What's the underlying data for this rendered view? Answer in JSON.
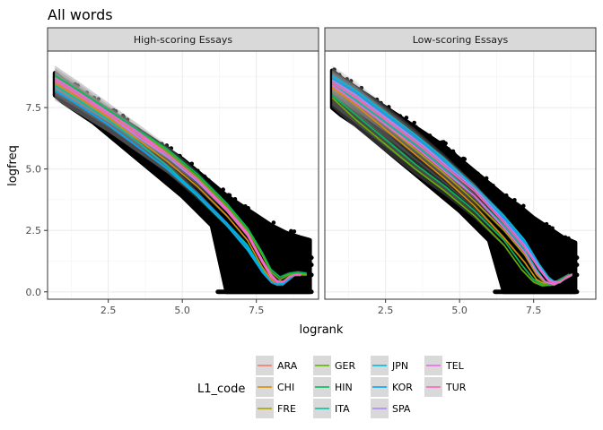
{
  "chart_data": {
    "type": "scatter",
    "title": "All words",
    "xlabel": "logrank",
    "ylabel": "logfreq",
    "xlim": [
      0.45,
      9.6
    ],
    "ylim": [
      -0.3,
      9.8
    ],
    "x_ticks": [
      2.5,
      5.0,
      7.5
    ],
    "x_tick_labels": [
      "2.5",
      "5.0",
      "7.5"
    ],
    "y_ticks": [
      0.0,
      2.5,
      5.0,
      7.5
    ],
    "y_tick_labels": [
      "0.0",
      "2.5",
      "5.0",
      "7.5"
    ],
    "grid": true,
    "facets": [
      {
        "label": "High-scoring Essays",
        "points_envelope": {
          "x": [
            0.7,
            1.0,
            1.5,
            2.0,
            2.5,
            3.0,
            3.5,
            4.0,
            4.5,
            5.0,
            5.5,
            6.0,
            6.5,
            7.0,
            7.5,
            8.0,
            8.5,
            9.0,
            9.3
          ],
          "upper": [
            8.9,
            8.6,
            8.2,
            7.8,
            7.4,
            7.0,
            6.6,
            6.2,
            5.8,
            5.4,
            4.9,
            4.4,
            3.9,
            3.5,
            3.1,
            2.7,
            2.4,
            2.2,
            2.1
          ],
          "lower": [
            8.0,
            7.7,
            7.3,
            6.9,
            6.4,
            5.9,
            5.4,
            4.9,
            4.4,
            3.9,
            3.3,
            2.7,
            0.0,
            0.0,
            0.0,
            0.0,
            0.0,
            0.0,
            0.0
          ]
        },
        "floor_rows": [
          0.0,
          0.69,
          1.1,
          1.39
        ],
        "floor_starts": [
          6.2,
          6.9,
          7.3,
          7.6
        ]
      },
      {
        "label": "Low-scoring Essays",
        "points_envelope": {
          "x": [
            0.7,
            1.0,
            1.5,
            2.0,
            2.5,
            3.0,
            3.5,
            4.0,
            4.5,
            5.0,
            5.5,
            6.0,
            6.5,
            7.0,
            7.5,
            8.0,
            8.5,
            8.9
          ],
          "upper": [
            9.0,
            8.7,
            8.3,
            7.9,
            7.5,
            7.1,
            6.7,
            6.3,
            5.9,
            5.4,
            4.9,
            4.4,
            3.9,
            3.5,
            3.0,
            2.6,
            2.2,
            2.0
          ],
          "lower": [
            7.5,
            7.2,
            6.8,
            6.3,
            5.8,
            5.3,
            4.8,
            4.3,
            3.8,
            3.3,
            2.7,
            2.1,
            0.0,
            0.0,
            0.0,
            0.0,
            0.0,
            0.0
          ]
        },
        "floor_rows": [
          0.0,
          0.69,
          1.1,
          1.39
        ],
        "floor_starts": [
          6.2,
          6.8,
          7.2,
          7.5
        ]
      }
    ],
    "legend": {
      "title": "L1_code",
      "position": "bottom",
      "entries": [
        {
          "code": "ARA",
          "color": "#F8766D"
        },
        {
          "code": "CHI",
          "color": "#DB8E00"
        },
        {
          "code": "FRE",
          "color": "#AEA200"
        },
        {
          "code": "GER",
          "color": "#64B200"
        },
        {
          "code": "HIN",
          "color": "#00BD5C"
        },
        {
          "code": "ITA",
          "color": "#00C1A7"
        },
        {
          "code": "JPN",
          "color": "#00BADE"
        },
        {
          "code": "KOR",
          "color": "#00A6FF"
        },
        {
          "code": "SPA",
          "color": "#B385FF"
        },
        {
          "code": "TEL",
          "color": "#EF67EB"
        },
        {
          "code": "TUR",
          "color": "#FF63B6"
        }
      ]
    },
    "smooth_lines": [
      {
        "facet": 0,
        "series": [
          {
            "code": "ARA",
            "x": [
              0.7,
              1.5,
              2.5,
              3.5,
              4.5,
              5.5,
              6.5,
              7.2,
              7.7,
              8.0,
              8.2,
              8.4,
              8.6,
              8.8,
              9.0,
              9.2
            ],
            "y": [
              8.6,
              8.0,
              7.2,
              6.4,
              5.5,
              4.5,
              3.3,
              2.3,
              1.2,
              0.6,
              0.4,
              0.35,
              0.5,
              0.7,
              0.7,
              0.7
            ]
          },
          {
            "code": "CHI",
            "x": [
              0.7,
              1.5,
              2.5,
              3.5,
              4.5,
              5.5,
              6.5,
              7.2,
              7.7,
              8.0,
              8.2,
              8.4,
              8.6,
              8.8,
              9.0
            ],
            "y": [
              8.5,
              7.9,
              7.1,
              6.2,
              5.3,
              4.3,
              3.1,
              2.1,
              1.0,
              0.5,
              0.3,
              0.3,
              0.5,
              0.7,
              0.7
            ]
          },
          {
            "code": "FRE",
            "x": [
              0.7,
              1.5,
              2.5,
              3.5,
              4.5,
              5.5,
              6.5,
              7.2,
              7.7,
              8.0,
              8.2,
              8.4,
              8.6,
              8.8,
              9.0
            ],
            "y": [
              8.7,
              8.1,
              7.3,
              6.4,
              5.6,
              4.6,
              3.4,
              2.4,
              1.3,
              0.7,
              0.4,
              0.4,
              0.6,
              0.7,
              0.7
            ]
          },
          {
            "code": "GER",
            "x": [
              0.7,
              1.5,
              2.5,
              3.5,
              4.5,
              5.5,
              6.5,
              7.2,
              7.7,
              8.0,
              8.3,
              8.6,
              8.9,
              9.2
            ],
            "y": [
              8.8,
              8.2,
              7.4,
              6.6,
              5.7,
              4.7,
              3.5,
              2.5,
              1.5,
              0.8,
              0.5,
              0.7,
              0.75,
              0.7
            ]
          },
          {
            "code": "HIN",
            "x": [
              0.7,
              1.5,
              2.5,
              3.5,
              4.5,
              5.5,
              6.5,
              7.2,
              7.7,
              8.0,
              8.3,
              8.6,
              8.9,
              9.2
            ],
            "y": [
              8.8,
              8.2,
              7.4,
              6.6,
              5.8,
              4.8,
              3.6,
              2.6,
              1.6,
              0.9,
              0.6,
              0.75,
              0.8,
              0.75
            ]
          },
          {
            "code": "ITA",
            "x": [
              0.7,
              1.5,
              2.5,
              3.5,
              4.5,
              5.5,
              6.5,
              7.2,
              7.7,
              8.0,
              8.2,
              8.4,
              8.6,
              8.8
            ],
            "y": [
              8.4,
              7.8,
              7.0,
              6.1,
              5.1,
              4.0,
              2.8,
              1.9,
              0.9,
              0.4,
              0.3,
              0.4,
              0.6,
              0.7
            ]
          },
          {
            "code": "JPN",
            "x": [
              0.7,
              1.5,
              2.5,
              3.5,
              4.5,
              5.5,
              6.5,
              7.2,
              7.7,
              8.0,
              8.2,
              8.4,
              8.6,
              8.8
            ],
            "y": [
              8.2,
              7.6,
              6.8,
              5.9,
              5.0,
              3.9,
              2.7,
              1.7,
              0.8,
              0.4,
              0.3,
              0.35,
              0.6,
              0.7
            ]
          },
          {
            "code": "KOR",
            "x": [
              0.7,
              1.5,
              2.5,
              3.5,
              4.5,
              5.5,
              6.5,
              7.2,
              7.7,
              8.0,
              8.2,
              8.4,
              8.6,
              8.8
            ],
            "y": [
              8.2,
              7.6,
              6.8,
              5.9,
              5.0,
              4.0,
              2.8,
              1.8,
              0.8,
              0.4,
              0.3,
              0.3,
              0.5,
              0.7
            ]
          },
          {
            "code": "SPA",
            "x": [
              0.7,
              1.5,
              2.5,
              3.5,
              4.5,
              5.5,
              6.5,
              7.2,
              7.7,
              8.0,
              8.2,
              8.4,
              8.6,
              8.8,
              9.0
            ],
            "y": [
              8.6,
              8.0,
              7.2,
              6.3,
              5.5,
              4.5,
              3.3,
              2.3,
              1.2,
              0.6,
              0.4,
              0.4,
              0.6,
              0.7,
              0.7
            ]
          },
          {
            "code": "TEL",
            "x": [
              0.7,
              1.5,
              2.5,
              3.5,
              4.5,
              5.5,
              6.5,
              7.2,
              7.7,
              8.0,
              8.2,
              8.4,
              8.6,
              8.8,
              9.0
            ],
            "y": [
              8.7,
              8.1,
              7.3,
              6.5,
              5.6,
              4.6,
              3.4,
              2.4,
              1.3,
              0.7,
              0.45,
              0.4,
              0.6,
              0.7,
              0.7
            ]
          },
          {
            "code": "TUR",
            "x": [
              0.7,
              1.5,
              2.5,
              3.5,
              4.5,
              5.5,
              6.5,
              7.2,
              7.7,
              8.0,
              8.2,
              8.4,
              8.6,
              8.8,
              9.0
            ],
            "y": [
              8.6,
              8.0,
              7.2,
              6.4,
              5.6,
              4.6,
              3.3,
              2.3,
              1.2,
              0.6,
              0.4,
              0.4,
              0.6,
              0.7,
              0.7
            ]
          }
        ]
      },
      {
        "facet": 1,
        "series": [
          {
            "code": "ARA",
            "x": [
              0.7,
              1.5,
              2.5,
              3.5,
              4.5,
              5.5,
              6.5,
              7.2,
              7.7,
              8.0,
              8.2,
              8.4,
              8.6,
              8.8
            ],
            "y": [
              8.6,
              8.0,
              7.1,
              6.2,
              5.3,
              4.3,
              3.0,
              2.0,
              1.0,
              0.5,
              0.4,
              0.4,
              0.6,
              0.7
            ]
          },
          {
            "code": "CHI",
            "x": [
              0.7,
              1.5,
              2.5,
              3.5,
              4.5,
              5.5,
              6.5,
              7.2,
              7.6,
              7.9,
              8.2,
              8.5,
              8.8
            ],
            "y": [
              8.3,
              7.6,
              6.6,
              5.6,
              4.6,
              3.5,
              2.2,
              1.2,
              0.5,
              0.3,
              0.3,
              0.5,
              0.7
            ]
          },
          {
            "code": "FRE",
            "x": [
              0.7,
              1.5,
              2.5,
              3.5,
              4.5,
              5.5,
              6.5,
              7.2,
              7.6,
              7.9,
              8.2,
              8.5,
              8.8
            ],
            "y": [
              8.4,
              7.7,
              6.8,
              5.8,
              4.8,
              3.7,
              2.5,
              1.5,
              0.7,
              0.35,
              0.3,
              0.5,
              0.7
            ]
          },
          {
            "code": "GER",
            "x": [
              0.7,
              1.5,
              2.5,
              3.5,
              4.5,
              5.5,
              6.5,
              7.1,
              7.5,
              7.8,
              8.1,
              8.4,
              8.7
            ],
            "y": [
              7.9,
              7.0,
              6.0,
              5.0,
              4.1,
              3.1,
              1.9,
              0.9,
              0.4,
              0.25,
              0.3,
              0.5,
              0.7
            ]
          },
          {
            "code": "HIN",
            "x": [
              0.7,
              1.5,
              2.5,
              3.5,
              4.5,
              5.5,
              6.5,
              7.1,
              7.5,
              7.8,
              8.1,
              8.4,
              8.7
            ],
            "y": [
              8.0,
              7.2,
              6.2,
              5.2,
              4.3,
              3.3,
              2.1,
              1.1,
              0.5,
              0.3,
              0.3,
              0.5,
              0.7
            ]
          },
          {
            "code": "ITA",
            "x": [
              0.7,
              1.5,
              2.5,
              3.5,
              4.5,
              5.5,
              6.5,
              7.2,
              7.6,
              7.9,
              8.2,
              8.5,
              8.8
            ],
            "y": [
              8.5,
              7.8,
              6.9,
              6.0,
              5.0,
              3.9,
              2.7,
              1.7,
              0.9,
              0.4,
              0.3,
              0.5,
              0.7
            ]
          },
          {
            "code": "JPN",
            "x": [
              0.7,
              1.5,
              2.5,
              3.5,
              4.5,
              5.5,
              6.5,
              7.2,
              7.7,
              8.0,
              8.2,
              8.4,
              8.6,
              8.8
            ],
            "y": [
              8.8,
              8.2,
              7.3,
              6.4,
              5.4,
              4.3,
              3.1,
              2.1,
              1.1,
              0.6,
              0.4,
              0.4,
              0.6,
              0.7
            ]
          },
          {
            "code": "KOR",
            "x": [
              0.7,
              1.5,
              2.5,
              3.5,
              4.5,
              5.5,
              6.5,
              7.2,
              7.7,
              8.0,
              8.2,
              8.4,
              8.6,
              8.8
            ],
            "y": [
              8.7,
              8.1,
              7.2,
              6.3,
              5.3,
              4.2,
              3.0,
              2.0,
              1.0,
              0.5,
              0.4,
              0.4,
              0.6,
              0.7
            ]
          },
          {
            "code": "SPA",
            "x": [
              0.7,
              1.5,
              2.5,
              3.5,
              4.5,
              5.5,
              6.5,
              7.2,
              7.7,
              8.0,
              8.2,
              8.4,
              8.6,
              8.8
            ],
            "y": [
              8.6,
              8.0,
              7.1,
              6.2,
              5.2,
              4.2,
              2.9,
              1.9,
              1.0,
              0.5,
              0.4,
              0.4,
              0.6,
              0.7
            ]
          },
          {
            "code": "TEL",
            "x": [
              0.7,
              1.5,
              2.5,
              3.5,
              4.5,
              5.5,
              6.5,
              7.2,
              7.6,
              7.9,
              8.2,
              8.5,
              8.8
            ],
            "y": [
              8.4,
              7.7,
              6.8,
              5.9,
              4.9,
              3.9,
              2.6,
              1.6,
              0.8,
              0.4,
              0.3,
              0.5,
              0.7
            ]
          },
          {
            "code": "TUR",
            "x": [
              0.7,
              1.5,
              2.5,
              3.5,
              4.5,
              5.5,
              6.5,
              7.2,
              7.7,
              8.0,
              8.2,
              8.4,
              8.6,
              8.8
            ],
            "y": [
              8.5,
              7.9,
              7.0,
              6.1,
              5.1,
              4.1,
              2.8,
              1.8,
              0.9,
              0.45,
              0.35,
              0.4,
              0.6,
              0.7
            ]
          }
        ]
      }
    ]
  }
}
